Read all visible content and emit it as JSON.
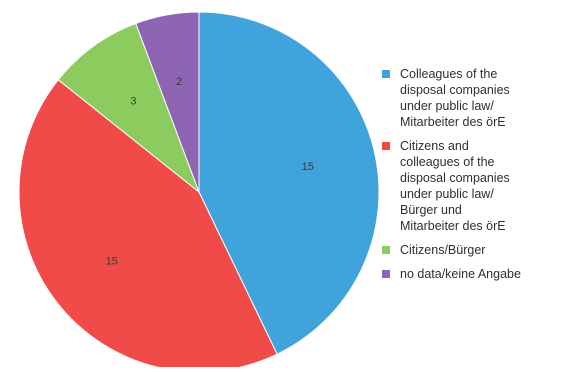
{
  "chart_data": {
    "type": "pie",
    "slices": [
      {
        "label": "Colleagues of the\ndisposal companies\nunder public law/\nMitarbeiter des örE",
        "value": 15,
        "color": "#41a3dc"
      },
      {
        "label": "Citizens and\ncolleagues of the\ndisposal companies\nunder public law/\nBürger und\nMitarbeiter des örE",
        "value": 15,
        "color": "#f04a49"
      },
      {
        "label": "Citizens/Bürger",
        "value": 3,
        "color": "#8ccc5e"
      },
      {
        "label": "no data/keine Angabe",
        "value": 2,
        "color": "#8d65b2"
      }
    ],
    "data_labels": [
      "15",
      "15",
      "3",
      "2"
    ],
    "title": "",
    "legend_position": "right",
    "legend": [
      "Colleagues of the\ndisposal companies\nunder public law/\nMitarbeiter des örE",
      "Citizens and\ncolleagues of the\ndisposal companies\nunder public law/\nBürger und\nMitarbeiter des örE",
      "Citizens/Bürger",
      "no data/keine Angabe"
    ]
  }
}
